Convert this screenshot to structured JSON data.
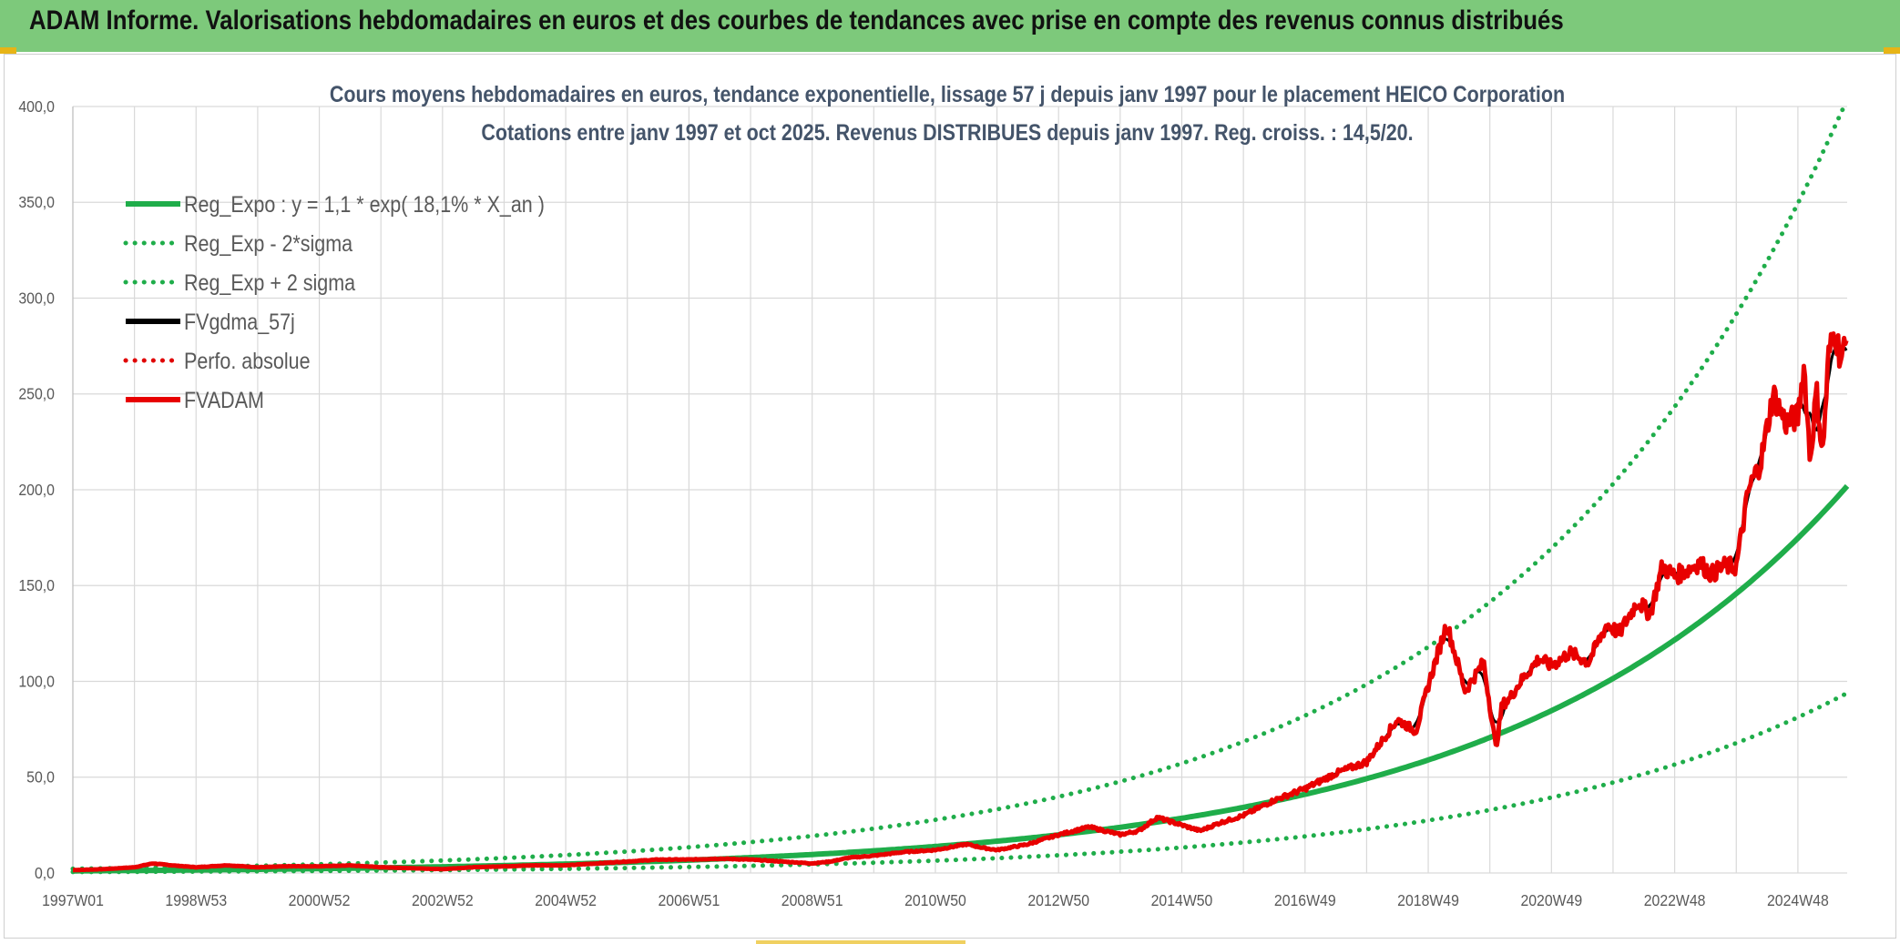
{
  "banner": {
    "title": "ADAM Informe. Valorisations hebdomadaires en euros et des courbes de tendances avec prise en compte des revenus connus distribués",
    "color": "#7dc97b"
  },
  "chart_data": {
    "type": "line",
    "title": "Cours moyens hebdomadaires en euros, tendance exponentielle, lissage 57 j depuis janv 1997 pour le placement HEICO Corporation",
    "subtitle": "Cotations entre janv 1997 et oct 2025. Revenus DISTRIBUES depuis janv 1997. Reg. croiss. : 14,5/20.",
    "xlabel": "",
    "ylabel": "",
    "ylim": [
      0,
      400
    ],
    "yticks": [
      "0,0",
      "50,0",
      "100,0",
      "150,0",
      "200,0",
      "250,0",
      "300,0",
      "350,0",
      "400,0"
    ],
    "xlim": [
      1997.0,
      2025.8
    ],
    "xtick_labels": [
      {
        "t": 1997.0,
        "label": "1997W01"
      },
      {
        "t": 1999.0,
        "label": "1998W53"
      },
      {
        "t": 2001.0,
        "label": "2000W52"
      },
      {
        "t": 2003.0,
        "label": "2002W52"
      },
      {
        "t": 2005.0,
        "label": "2004W52"
      },
      {
        "t": 2007.0,
        "label": "2006W51"
      },
      {
        "t": 2009.0,
        "label": "2008W51"
      },
      {
        "t": 2011.0,
        "label": "2010W50"
      },
      {
        "t": 2013.0,
        "label": "2012W50"
      },
      {
        "t": 2015.0,
        "label": "2014W50"
      },
      {
        "t": 2017.0,
        "label": "2016W49"
      },
      {
        "t": 2019.0,
        "label": "2018W49"
      },
      {
        "t": 2021.0,
        "label": "2020W49"
      },
      {
        "t": 2023.0,
        "label": "2022W48"
      },
      {
        "t": 2025.0,
        "label": "2024W48"
      }
    ],
    "grid": true,
    "legend_position": "top-left",
    "series": [
      {
        "name": "Reg_Expo : y = 1,1 * exp( 18,1% *  X_an )",
        "kind": "trend",
        "factor": 1.0,
        "color": "#1fad4a",
        "style": "solid"
      },
      {
        "name": "Reg_Exp - 2*sigma",
        "kind": "trend",
        "factor": 0.465,
        "color": "#1fad4a",
        "style": "dotted"
      },
      {
        "name": "Reg_Exp + 2 sigma",
        "kind": "trend",
        "factor": 2.0,
        "color": "#1fad4a",
        "style": "dotted"
      },
      {
        "name": "FVgdma_57j",
        "kind": "data",
        "color": "#000000",
        "style": "solid"
      },
      {
        "name": "Perfo. absolue",
        "kind": "data",
        "color": "#e00000",
        "style": "dotted"
      },
      {
        "name": "FVADAM",
        "kind": "data",
        "color": "#e80000",
        "style": "solid"
      }
    ],
    "trend": {
      "a": 1.1,
      "b": 0.181,
      "start": 1997.0
    },
    "price_series": {
      "name": "FVADAM",
      "x": [
        1997.0,
        1997.5,
        1998.0,
        1998.3,
        1998.6,
        1999.0,
        1999.5,
        2000.0,
        2000.5,
        2001.0,
        2001.5,
        2002.0,
        2002.5,
        2003.0,
        2003.5,
        2004.0,
        2004.5,
        2005.0,
        2005.5,
        2006.0,
        2006.5,
        2007.0,
        2007.5,
        2008.0,
        2008.5,
        2009.0,
        2009.3,
        2009.6,
        2010.0,
        2010.5,
        2011.0,
        2011.5,
        2011.8,
        2012.0,
        2012.5,
        2013.0,
        2013.5,
        2014.0,
        2014.3,
        2014.6,
        2015.0,
        2015.3,
        2015.6,
        2016.0,
        2016.5,
        2017.0,
        2017.5,
        2018.0,
        2018.5,
        2018.8,
        2019.0,
        2019.3,
        2019.6,
        2019.9,
        2020.1,
        2020.2,
        2020.3,
        2020.5,
        2020.8,
        2021.0,
        2021.3,
        2021.6,
        2021.9,
        2022.1,
        2022.4,
        2022.6,
        2022.8,
        2023.0,
        2023.2,
        2023.4,
        2023.6,
        2023.8,
        2024.0,
        2024.2,
        2024.4,
        2024.6,
        2024.8,
        2025.0,
        2025.1,
        2025.2,
        2025.3,
        2025.4,
        2025.5,
        2025.6,
        2025.7,
        2025.8
      ],
      "y": [
        1.5,
        2.0,
        3.0,
        5.0,
        4.0,
        3.0,
        4.0,
        3.0,
        3.5,
        3.5,
        4.0,
        3.0,
        2.5,
        2.0,
        3.0,
        3.5,
        4.0,
        4.0,
        5.0,
        6.0,
        7.0,
        7.0,
        7.5,
        7.0,
        6.0,
        5.0,
        6.0,
        8.0,
        9.0,
        11.0,
        12.0,
        15.0,
        13.0,
        12.0,
        15.0,
        20.0,
        24.0,
        20.0,
        22.0,
        29.0,
        25.0,
        22.0,
        26.0,
        30.0,
        38.0,
        44.0,
        52.0,
        58.0,
        80.0,
        74.0,
        98.0,
        130.0,
        95.0,
        110.0,
        65.0,
        88.0,
        90.0,
        100.0,
        112.0,
        108.0,
        115.0,
        110.0,
        130.0,
        125.0,
        142.0,
        135.0,
        160.0,
        155.0,
        158.0,
        162.0,
        156.0,
        160.0,
        160.0,
        200.0,
        215.0,
        250.0,
        235.0,
        238.0,
        265.0,
        215.0,
        252.0,
        218.0,
        270.0,
        283.0,
        268.0,
        278.0
      ]
    }
  }
}
